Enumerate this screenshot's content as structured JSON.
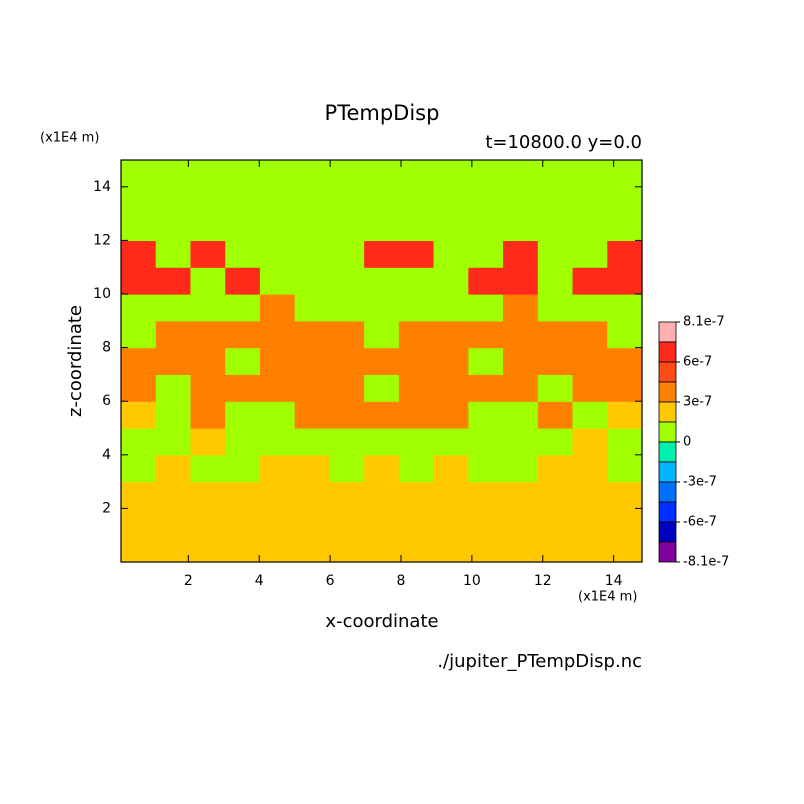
{
  "chart_data": {
    "type": "contour",
    "title": "PTempDisp",
    "subtitle": "t=10800.0 y=0.0",
    "y_unit": "(x1E4 m)",
    "x_unit": "(x1E4 m)",
    "xlabel": "x-coordinate",
    "ylabel": "z-coordinate",
    "source": "./jupiter_PTempDisp.nc",
    "xlim": [
      0.1,
      14.8
    ],
    "xticks": [
      2,
      4,
      6,
      8,
      10,
      12,
      14
    ],
    "ylim": [
      0,
      15
    ],
    "yticks": [
      2,
      4,
      6,
      8,
      10,
      12,
      14
    ],
    "levels": [
      8.1e-07,
      7.5e-07,
      6e-07,
      4.5e-07,
      3e-07,
      1.5e-07,
      0,
      -1.5e-07,
      -3e-07,
      -4.5e-07,
      -6e-07,
      -7.5e-07,
      -8.1e-07
    ],
    "colors": [
      "#ffb0b0",
      "#ff2a1a",
      "#ff4a1a",
      "#ff8000",
      "#ffc800",
      "#a0ff00",
      "#00f0b0",
      "#00b4ff",
      "#0070ff",
      "#0030ff",
      "#0000c0",
      "#8000a0"
    ],
    "colorbar_ticks": [
      8.1e-07,
      6e-07,
      3e-07,
      0,
      -3e-07,
      -6e-07,
      -8.1e-07
    ],
    "z": [
      [
        2e-07,
        2e-07,
        2e-07,
        2e-07,
        2e-07,
        2e-07,
        2e-07,
        2e-07,
        2e-07,
        2e-07,
        2e-07,
        2e-07,
        2e-07,
        2e-07,
        2e-07
      ],
      [
        2e-07,
        2e-07,
        2e-07,
        2e-07,
        2e-07,
        2e-07,
        2e-07,
        2e-07,
        2e-07,
        2e-07,
        2e-07,
        2e-07,
        2e-07,
        2e-07,
        2e-07
      ],
      [
        2e-07,
        2e-07,
        2e-07,
        2e-07,
        2e-07,
        2e-07,
        2e-07,
        2e-07,
        2e-07,
        2e-07,
        2e-07,
        2e-07,
        2e-07,
        2e-07,
        2e-07
      ],
      [
        1e-07,
        2e-07,
        1e-07,
        1e-07,
        2e-07,
        2e-07,
        1e-07,
        2e-07,
        1e-07,
        2e-07,
        1e-07,
        1e-07,
        2e-07,
        2e-07,
        1e-07
      ],
      [
        1e-07,
        1e-07,
        2e-07,
        1e-07,
        1e-07,
        1e-07,
        1e-07,
        1e-07,
        1e-07,
        1e-07,
        1e-07,
        1e-07,
        1e-07,
        2e-07,
        1e-07
      ],
      [
        2e-07,
        1e-07,
        4e-07,
        1e-07,
        1e-07,
        4e-07,
        4e-07,
        4e-07,
        4e-07,
        4e-07,
        1e-07,
        1e-07,
        4e-07,
        1e-07,
        2e-07
      ],
      [
        4e-07,
        1e-07,
        4e-07,
        4e-07,
        4e-07,
        4e-07,
        4e-07,
        1e-07,
        4e-07,
        4e-07,
        4e-07,
        4e-07,
        1e-07,
        4e-07,
        4e-07
      ],
      [
        4e-07,
        4e-07,
        4e-07,
        1e-07,
        4e-07,
        4e-07,
        4e-07,
        4e-07,
        4e-07,
        4e-07,
        1e-07,
        4e-07,
        4e-07,
        4e-07,
        4e-07
      ],
      [
        1e-07,
        4e-07,
        4e-07,
        4e-07,
        4e-07,
        4e-07,
        4e-07,
        1e-07,
        4e-07,
        4e-07,
        4e-07,
        4e-07,
        4e-07,
        4e-07,
        1e-07
      ],
      [
        1e-07,
        1e-07,
        1e-07,
        1e-07,
        4e-07,
        1e-07,
        1e-07,
        1e-07,
        1e-07,
        1e-07,
        1e-07,
        4e-07,
        1e-07,
        1e-07,
        1e-07
      ],
      [
        7e-07,
        7e-07,
        1e-07,
        7e-07,
        1e-07,
        1e-07,
        1e-07,
        1e-07,
        1e-07,
        1e-07,
        7e-07,
        7e-07,
        1e-07,
        7e-07,
        7e-07
      ],
      [
        7e-07,
        1e-07,
        7e-07,
        1e-07,
        1e-07,
        1e-07,
        1e-07,
        7e-07,
        7e-07,
        1e-07,
        1e-07,
        7e-07,
        1e-07,
        1e-07,
        7e-07
      ],
      [
        1e-07,
        1e-07,
        1e-07,
        1e-07,
        1e-07,
        1e-07,
        1e-07,
        1e-07,
        1e-07,
        1e-07,
        1e-07,
        1e-07,
        1e-07,
        1e-07,
        1e-07
      ],
      [
        1e-07,
        1e-07,
        1e-07,
        1e-07,
        1e-07,
        1e-07,
        1e-07,
        1e-07,
        1e-07,
        1e-07,
        1e-07,
        1e-07,
        1e-07,
        1e-07,
        1e-07
      ],
      [
        1e-07,
        1e-07,
        1e-07,
        1e-07,
        1e-07,
        1e-07,
        1e-07,
        1e-07,
        1e-07,
        1e-07,
        1e-07,
        1e-07,
        1e-07,
        1e-07,
        1e-07
      ]
    ]
  }
}
